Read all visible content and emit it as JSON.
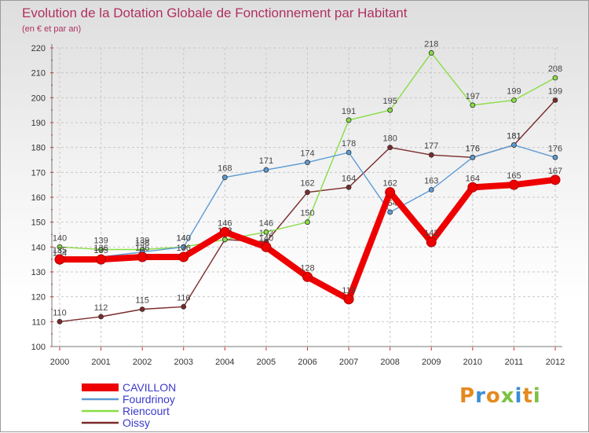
{
  "chart_data": {
    "type": "line",
    "title": "Evolution de la Dotation Globale de Fonctionnement par Habitant",
    "subtitle": "(en € et par an)",
    "x": [
      "2000",
      "2001",
      "2002",
      "2003",
      "2004",
      "2005",
      "2006",
      "2007",
      "2008",
      "2009",
      "2010",
      "2011",
      "2012"
    ],
    "ylim": [
      100,
      220
    ],
    "yticks": [
      "100",
      "110",
      "120",
      "130",
      "140",
      "150",
      "160",
      "170",
      "180",
      "190",
      "200",
      "210",
      "220"
    ],
    "series": [
      {
        "name": "CAVILLON",
        "color": "#ee0000",
        "values": [
          135,
          135,
          136,
          136,
          146,
          140,
          128,
          119,
          162,
          142,
          164,
          165,
          167
        ]
      },
      {
        "name": "Fourdrinoy",
        "color": "#5b9bd5",
        "values": [
          134,
          136,
          138,
          140,
          168,
          171,
          174,
          178,
          154,
          163,
          176,
          181,
          176
        ]
      },
      {
        "name": "Riencourt",
        "color": "#88dd44",
        "values": [
          140,
          139,
          139,
          140,
          143,
          146,
          150,
          191,
          195,
          218,
          197,
          199,
          208
        ]
      },
      {
        "name": "Oissy",
        "color": "#7a2a2a",
        "values": [
          110,
          112,
          115,
          116,
          143,
          142,
          162,
          164,
          180,
          177,
          176,
          181,
          199
        ]
      }
    ]
  },
  "logo": {
    "text": "Proxiti",
    "letters": [
      "P",
      "r",
      "o",
      "x",
      "i",
      "t",
      "i"
    ],
    "colors": [
      "#e58a1f",
      "#3b8dd6",
      "#e58a1f",
      "#7cc242",
      "#3b8dd6",
      "#e58a1f",
      "#7cc242"
    ]
  }
}
